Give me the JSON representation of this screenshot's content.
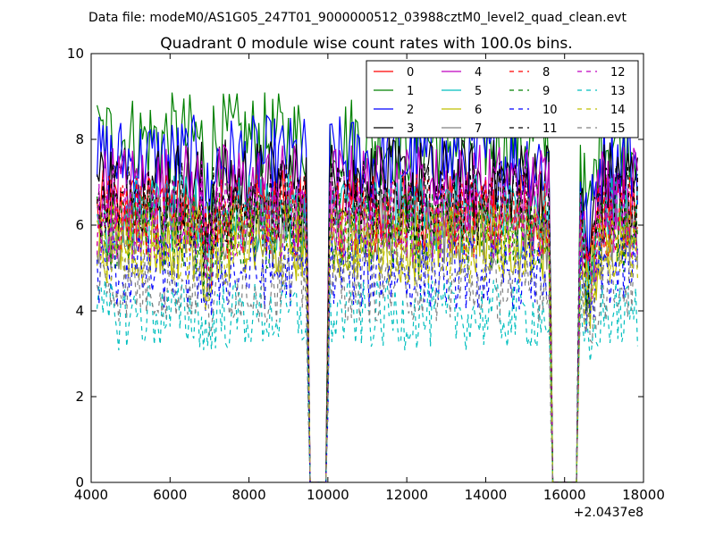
{
  "header": {
    "data_file": "Data file: modeM0/AS1G05_247T01_9000000512_03988cztM0_level2_quad_clean.evt"
  },
  "chart_data": {
    "type": "line",
    "title": "Quadrant 0 module wise count rates with 100.0s bins.",
    "xlabel": "",
    "ylabel": "",
    "x_offset_label": "+2.0437e8",
    "xlim": [
      4000,
      18000
    ],
    "ylim": [
      0,
      10
    ],
    "xticks": [
      "4000",
      "6000",
      "8000",
      "10000",
      "12000",
      "14000",
      "16000",
      "18000"
    ],
    "yticks": [
      "0",
      "2",
      "4",
      "6",
      "8",
      "10"
    ],
    "grid": false,
    "legend": "top-right",
    "gaps": [
      [
        9500,
        10000
      ],
      [
        15650,
        16350
      ]
    ],
    "series": [
      {
        "name": "0",
        "color": "#ff0000",
        "dashed": false,
        "base": 6.3
      },
      {
        "name": "1",
        "color": "#008000",
        "dashed": false,
        "base": 8.0
      },
      {
        "name": "2",
        "color": "#0000ff",
        "dashed": false,
        "base": 7.5
      },
      {
        "name": "3",
        "color": "#000000",
        "dashed": false,
        "base": 7.0
      },
      {
        "name": "4",
        "color": "#bf00bf",
        "dashed": false,
        "base": 6.9
      },
      {
        "name": "5",
        "color": "#00bfbf",
        "dashed": false,
        "base": 6.2
      },
      {
        "name": "6",
        "color": "#bfbf00",
        "dashed": false,
        "base": 5.6
      },
      {
        "name": "7",
        "color": "#808080",
        "dashed": false,
        "base": 5.9
      },
      {
        "name": "8",
        "color": "#ff0000",
        "dashed": true,
        "base": 6.2
      },
      {
        "name": "9",
        "color": "#008000",
        "dashed": true,
        "base": 5.8
      },
      {
        "name": "10",
        "color": "#0000ff",
        "dashed": true,
        "base": 4.9
      },
      {
        "name": "11",
        "color": "#000000",
        "dashed": true,
        "base": 6.5
      },
      {
        "name": "12",
        "color": "#bf00bf",
        "dashed": true,
        "base": 6.1
      },
      {
        "name": "13",
        "color": "#00bfbf",
        "dashed": true,
        "base": 3.9
      },
      {
        "name": "14",
        "color": "#bfbf00",
        "dashed": true,
        "base": 5.5
      },
      {
        "name": "15",
        "color": "#808080",
        "dashed": true,
        "base": 4.6
      }
    ]
  }
}
